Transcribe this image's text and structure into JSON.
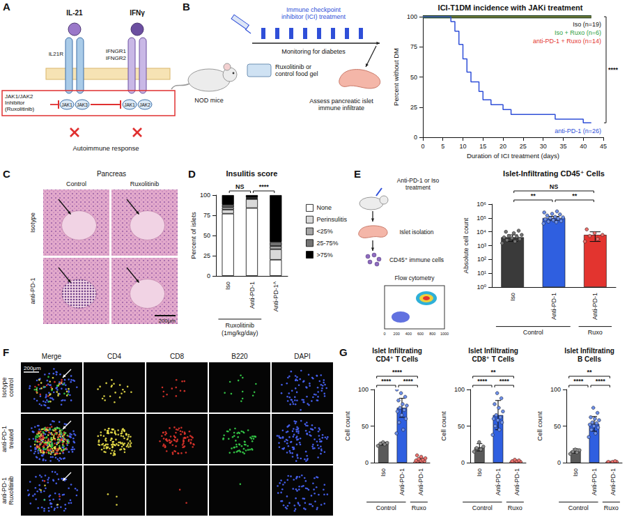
{
  "panels": {
    "A": {
      "letter": "A",
      "ligands": [
        "IL-21",
        "IFNγ"
      ],
      "receptors": [
        "IL21R",
        "IFNGR1",
        "IFNGR2"
      ],
      "jaks": [
        "JAK1",
        "JAK3",
        "JAK1",
        "JAK2"
      ],
      "inhibitor": "JAK1/JAK2 Inhibitor (Ruxolitinib)",
      "outcome": "Autoimmune response"
    },
    "B": {
      "letter": "B",
      "model": "NOD mice",
      "treatment": "Immune checkpoint inhibitor (ICI) treatment",
      "monitoring": "Monitoring for diabetes",
      "diet": "Ruxolitinib or control food gel",
      "readout": "Assess pancreatic islet immune infiltrate"
    },
    "C": {
      "letter": "C",
      "title": "Pancreas",
      "columns": [
        "Control",
        "Ruxolitinib"
      ],
      "rows": [
        "Isotype",
        "anti-PD-1"
      ],
      "scale_bar": "200μm"
    },
    "D": {
      "letter": "D"
    },
    "E": {
      "letter": "E",
      "treatment": "Anti-PD-1 or Iso treatment",
      "step1": "Islet isolation",
      "step2": "CD45⁺ immune cells",
      "step3": "Flow cytometry",
      "flow_ticks": [
        0,
        200,
        400,
        600,
        800,
        1000
      ]
    },
    "F": {
      "letter": "F",
      "columns": [
        "Merge",
        "CD4",
        "CD8",
        "B220",
        "DAPI"
      ],
      "rows": [
        "Isotype control",
        "anti-PD-1 treated",
        "anti-PD-1 Ruxolitinib"
      ],
      "scale_bar": "200μm"
    },
    "G": {
      "letter": "G"
    }
  },
  "chart_data": [
    {
      "type": "line",
      "title": "ICI-T1DM incidence with JAKi treatment",
      "xlabel": "Duration of ICI treatment (days)",
      "ylabel": "Percent without DM",
      "xlim": [
        0,
        45
      ],
      "xticks": [
        0,
        5,
        10,
        15,
        20,
        25,
        30,
        35,
        40,
        45
      ],
      "ylim": [
        0,
        100
      ],
      "yticks": [
        0,
        25,
        50,
        75,
        100
      ],
      "grid": false,
      "series": [
        {
          "name": "Iso (n=19)",
          "color": "#111111",
          "x": [
            0,
            42
          ],
          "values": [
            100,
            100
          ]
        },
        {
          "name": "Iso + Ruxo (n=6)",
          "color": "#2e9e3e",
          "x": [
            0,
            42
          ],
          "values": [
            100,
            100
          ]
        },
        {
          "name": "anti-PD-1 + Ruxo (n=14)",
          "color": "#e3342f",
          "x": [
            0,
            42
          ],
          "values": [
            100,
            100
          ]
        },
        {
          "name": "anti-PD-1 (n=26)",
          "color": "#2f4fd8",
          "x": [
            0,
            7,
            8,
            9,
            10,
            11,
            12,
            14,
            15,
            17,
            20,
            22,
            33,
            40,
            42
          ],
          "values": [
            100,
            96,
            88,
            77,
            65,
            54,
            46,
            38,
            31,
            27,
            23,
            19,
            15,
            12,
            12
          ]
        }
      ],
      "comparisons": [
        {
          "from": 0,
          "to": 3,
          "label": "****"
        }
      ]
    },
    {
      "type": "bar",
      "title": "Insulitis score",
      "ylabel": "Percent of islets",
      "categories": [
        "Iso",
        "Anti-PD-1",
        "Anti-PD-1^"
      ],
      "group_labels": [
        "Ruxolitinib (1mg/kg/day)",
        "Ruxolitinib (1mg/kg/day)",
        null
      ],
      "stacked": true,
      "legend": "right",
      "ylim": [
        0,
        100
      ],
      "yticks": [
        0,
        25,
        50,
        75,
        100
      ],
      "grid": false,
      "series": [
        {
          "name": "None",
          "color": "#ffffff",
          "values": [
            77,
            84,
            20
          ]
        },
        {
          "name": "Perinsulitis",
          "color": "#d9d9d9",
          "values": [
            5,
            11,
            13
          ]
        },
        {
          "name": "<25%",
          "color": "#a6a6a6",
          "values": [
            3,
            1,
            4
          ]
        },
        {
          "name": "25-75%",
          "color": "#737373",
          "values": [
            3,
            1,
            5
          ]
        },
        {
          "name": ">75%",
          "color": "#000000",
          "values": [
            12,
            3,
            58
          ]
        }
      ],
      "comparisons": [
        {
          "from": 0,
          "to": 1,
          "label": "NS"
        },
        {
          "from": 1,
          "to": 2,
          "label": "****"
        }
      ]
    },
    {
      "type": "bar",
      "title": "Islet-Infiltrating CD45⁺ Cells",
      "ylabel": "Absolute cell count",
      "categories": [
        "Iso",
        "Anti-PD-1",
        "Anti-PD-1"
      ],
      "group_labels": [
        "Control",
        "Control",
        "Ruxo"
      ],
      "log": "y",
      "ylim": [
        1,
        1000000
      ],
      "yticks": [
        {
          "value": 1,
          "label": "10⁰"
        },
        {
          "value": 10,
          "label": "10¹"
        },
        {
          "value": 100,
          "label": "10²"
        },
        {
          "value": 1000,
          "label": "10³"
        },
        {
          "value": 10000,
          "label": "10⁴"
        },
        {
          "value": 100000,
          "label": "10⁵"
        },
        {
          "value": 1000000,
          "label": "10⁶"
        }
      ],
      "grid": false,
      "colors": [
        "#3a3a3a",
        "#2f5fe0",
        "#e3342f"
      ],
      "values": [
        4000,
        100000,
        6000
      ],
      "errors": [
        2000,
        30000,
        4000
      ],
      "points": [
        [
          1500,
          2000,
          2500,
          3000,
          3500,
          4000,
          4500,
          5000,
          6000,
          8000,
          10000,
          12000
        ],
        [
          40000,
          50000,
          55000,
          60000,
          70000,
          80000,
          90000,
          100000,
          110000,
          120000,
          150000,
          180000,
          200000,
          250000,
          300000
        ],
        [
          2000,
          3000,
          5000,
          6000,
          8000,
          15000
        ]
      ],
      "comparisons": [
        {
          "from": 0,
          "to": 1,
          "label": "**"
        },
        {
          "from": 1,
          "to": 2,
          "label": "**"
        },
        {
          "from": 0,
          "to": 2,
          "label": "NS"
        }
      ]
    },
    {
      "type": "bar",
      "title": "Islet Infiltrating CD4⁺ T Cells",
      "ylabel": "Cell count",
      "categories": [
        "Iso",
        "Anti-PD-1",
        "Anti-PD-1"
      ],
      "group_labels": [
        "Control",
        "Control",
        "Ruxo"
      ],
      "ylim": [
        0,
        100
      ],
      "yticks": [
        0,
        50,
        100
      ],
      "grid": false,
      "colors": [
        "#5a5a5a",
        "#2f5fe0",
        "#e3342f"
      ],
      "values": [
        26,
        75,
        4
      ],
      "errors": [
        2,
        13,
        2
      ],
      "points": [
        [
          23,
          25,
          26,
          27,
          28
        ],
        [
          40,
          45,
          55,
          60,
          65,
          70,
          72,
          75,
          78,
          80,
          85,
          90,
          95,
          100
        ],
        [
          0,
          1,
          2,
          2,
          3,
          3,
          4,
          5,
          6,
          8,
          10
        ]
      ],
      "comparisons": [
        {
          "from": 0,
          "to": 1,
          "label": "****"
        },
        {
          "from": 1,
          "to": 2,
          "label": "****"
        },
        {
          "from": 0,
          "to": 2,
          "label": "****"
        }
      ]
    },
    {
      "type": "bar",
      "title": "Islet Infiltrating CD8⁺ T Cells",
      "ylabel": "Cell count",
      "categories": [
        "Iso",
        "Anti-PD-1",
        "Anti-PD-1"
      ],
      "group_labels": [
        "Control",
        "Control",
        "Ruxo"
      ],
      "ylim": [
        0,
        100
      ],
      "yticks": [
        0,
        50,
        100
      ],
      "grid": false,
      "colors": [
        "#5a5a5a",
        "#2f5fe0",
        "#e3342f"
      ],
      "values": [
        21,
        65,
        2
      ],
      "errors": [
        5,
        20,
        1
      ],
      "points": [
        [
          15,
          18,
          20,
          22,
          28
        ],
        [
          38,
          45,
          50,
          55,
          58,
          60,
          62,
          65,
          70,
          75,
          80,
          88,
          95
        ],
        [
          0,
          0,
          1,
          1,
          2,
          2,
          3,
          4
        ]
      ],
      "comparisons": [
        {
          "from": 0,
          "to": 1,
          "label": "****"
        },
        {
          "from": 1,
          "to": 2,
          "label": "****"
        },
        {
          "from": 0,
          "to": 2,
          "label": "**"
        }
      ]
    },
    {
      "type": "bar",
      "title": "Islet Infiltrating B Cells",
      "ylabel": "Cell count",
      "categories": [
        "Iso",
        "Anti-PD-1",
        "Anti-PD-1"
      ],
      "group_labels": [
        "Control",
        "Control",
        "Ruxo"
      ],
      "ylim": [
        0,
        100
      ],
      "yticks": [
        0,
        50,
        100
      ],
      "grid": false,
      "colors": [
        "#5a5a5a",
        "#2f5fe0",
        "#e3342f"
      ],
      "values": [
        16,
        53,
        1
      ],
      "errors": [
        3,
        10,
        0.5
      ],
      "points": [
        [
          12,
          14,
          15,
          17,
          18
        ],
        [
          35,
          40,
          45,
          48,
          50,
          52,
          54,
          55,
          58,
          60,
          62,
          68,
          75
        ],
        [
          0,
          0,
          0,
          1,
          1,
          1,
          2
        ]
      ],
      "comparisons": [
        {
          "from": 0,
          "to": 1,
          "label": "****"
        },
        {
          "from": 1,
          "to": 2,
          "label": "****"
        },
        {
          "from": 0,
          "to": 2,
          "label": "**"
        }
      ]
    }
  ]
}
